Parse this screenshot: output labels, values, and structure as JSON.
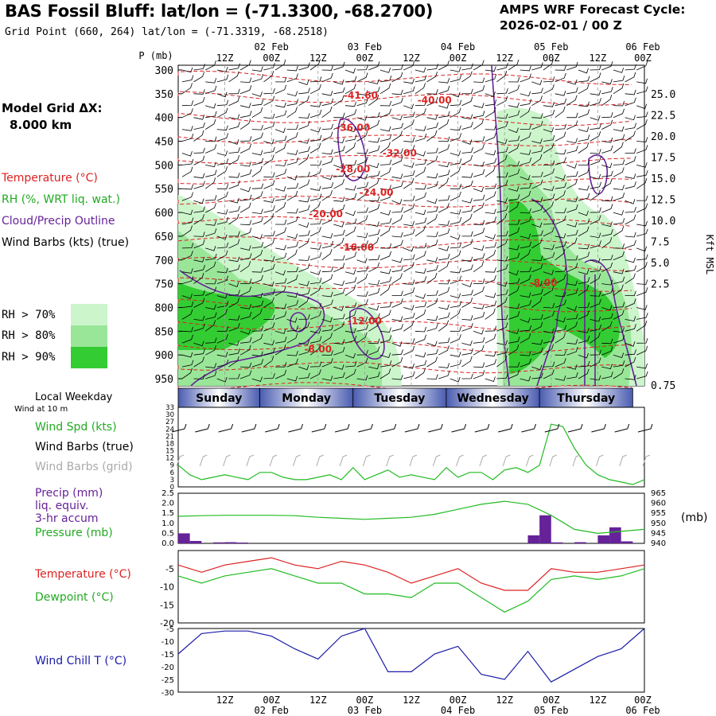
{
  "header": {
    "title": "BAS Fossil Bluff:  lat/lon = (-71.3300, -68.2700)",
    "grid_point": "Grid Point (660, 264) lat/lon = (-71.3319, -68.2518)",
    "cycle_label": "AMPS WRF Forecast Cycle:",
    "cycle_value": "2026-02-01 / 00  Z",
    "model_grid_label": "Model Grid ΔX:",
    "model_grid_value": "8.000 km"
  },
  "colors": {
    "temperature": "#dd2222",
    "rh": "#22bb22",
    "cloud_outline": "#662299",
    "wind_barb_true": "#000000",
    "wind_barb_grid": "#aaaaaa",
    "precip": "#662299",
    "pressure": "#22bb22",
    "dewpoint": "#22bb22",
    "wind_chill": "#1a1aa8",
    "rh70": "#ccf5cc",
    "rh80": "#99e699",
    "rh90": "#33cc33",
    "day_band_center": "#ffffff",
    "day_band_edge": "#4a5cb0"
  },
  "legend": {
    "temperature": "Temperature (°C)",
    "rh": "RH (%, WRT liq. wat.)",
    "cloud": "Cloud/Precip Outline",
    "wind_barbs": "Wind Barbs (kts) (true)",
    "rh70": "RH > 70%",
    "rh80": "RH > 80%",
    "rh90": "RH > 90%"
  },
  "panel_labels": {
    "local_weekday": "Local Weekday",
    "wind_at_10m": "Wind at 10 m",
    "wind_spd": "Wind Spd (kts)",
    "wind_barbs_true": "Wind Barbs (true)",
    "wind_barbs_grid": "Wind Barbs (grid)",
    "precip": "Precip (mm)",
    "precip_2": "liq. equiv.",
    "precip_3": "3-hr accum",
    "pressure": "Pressure (mb)",
    "pressure_unit": "(mb)",
    "temperature": "Temperature (°C)",
    "dewpoint": "Dewpoint (°C)",
    "wind_chill": "Wind Chill T (°C)",
    "kft_msl": "Kft MSL",
    "p_mb": "P (mb)"
  },
  "chart_data": {
    "type": "time-height meteogram",
    "time_axis": {
      "start_hour": 0,
      "end_hour": 120,
      "hour_labels": [
        "12Z",
        "00Z",
        "12Z",
        "00Z",
        "12Z",
        "00Z",
        "12Z",
        "00Z",
        "12Z",
        "00Z"
      ],
      "hour_label_times": [
        12,
        24,
        36,
        48,
        60,
        72,
        84,
        96,
        108,
        120
      ],
      "date_labels": [
        "02 Feb",
        "03 Feb",
        "04 Feb",
        "05 Feb",
        "06 Feb"
      ],
      "date_label_times": [
        24,
        48,
        72,
        96,
        120
      ]
    },
    "weekdays": [
      "Sunday",
      "Monday",
      "Tuesday",
      "Wednesday",
      "Thursday"
    ],
    "cross_section": {
      "pressure_levels": [
        300,
        350,
        400,
        450,
        500,
        550,
        600,
        650,
        700,
        750,
        800,
        850,
        900,
        950
      ],
      "height_ticks_kft": [
        "25.0",
        "22.5",
        "20.0",
        "17.5",
        "15.0",
        "12.5",
        "10.0",
        "7.5",
        "5.0",
        "2.5",
        "0.75"
      ],
      "temperature_contour_labels": [
        {
          "value": "-41.60",
          "t": 47,
          "p": 360
        },
        {
          "value": "-40.00",
          "t": 66,
          "p": 370
        },
        {
          "value": "-36.00",
          "t": 45,
          "p": 428
        },
        {
          "value": "-32.00",
          "t": 57,
          "p": 482
        },
        {
          "value": "-28.00",
          "t": 45,
          "p": 515
        },
        {
          "value": "-24.00",
          "t": 51,
          "p": 565
        },
        {
          "value": "-20.00",
          "t": 38,
          "p": 610
        },
        {
          "value": "-16.00",
          "t": 46,
          "p": 680
        },
        {
          "value": "-12.00",
          "t": 48,
          "p": 835
        },
        {
          "value": "-8.00",
          "t": 36,
          "p": 895
        },
        {
          "value": "-8.00",
          "t": 94,
          "p": 755
        }
      ]
    },
    "surface_wind": {
      "ylim": [
        0,
        33
      ],
      "yticks": [
        0,
        3,
        6,
        9,
        12,
        15,
        18,
        21,
        24,
        27,
        30,
        33
      ],
      "x": [
        0,
        3,
        6,
        9,
        12,
        15,
        18,
        21,
        24,
        27,
        30,
        33,
        36,
        39,
        42,
        45,
        48,
        51,
        54,
        57,
        60,
        63,
        66,
        69,
        72,
        75,
        78,
        81,
        84,
        87,
        90,
        93,
        96,
        99,
        102,
        105,
        108,
        111,
        114,
        117,
        120
      ],
      "speed": [
        9,
        5,
        3,
        4,
        5,
        4,
        3,
        6,
        6,
        4,
        3,
        3,
        4,
        5,
        3,
        8,
        3,
        5,
        7,
        4,
        5,
        4,
        3,
        8,
        4,
        6,
        6,
        3,
        7,
        8,
        6,
        9,
        26,
        25,
        16,
        9,
        5,
        3,
        2,
        1,
        3
      ]
    },
    "precip_pressure": {
      "precip_ylim": [
        0,
        2.5
      ],
      "precip_yticks": [
        "0.0",
        "0.5",
        "1.0",
        "1.5",
        "2.0",
        "2.5"
      ],
      "pressure_ylim": [
        940,
        965
      ],
      "pressure_yticks": [
        "940",
        "945",
        "950",
        "955",
        "960",
        "965"
      ],
      "precip_bars": [
        {
          "t": 1.5,
          "v": 0.5
        },
        {
          "t": 4.5,
          "v": 0.12
        },
        {
          "t": 10.5,
          "v": 0.05
        },
        {
          "t": 13.5,
          "v": 0.06
        },
        {
          "t": 16.5,
          "v": 0.04
        },
        {
          "t": 91.5,
          "v": 0.4
        },
        {
          "t": 94.5,
          "v": 1.4
        },
        {
          "t": 97.5,
          "v": 0.05
        },
        {
          "t": 103.5,
          "v": 0.06
        },
        {
          "t": 109.5,
          "v": 0.4
        },
        {
          "t": 112.5,
          "v": 0.8
        },
        {
          "t": 115.5,
          "v": 0.1
        }
      ],
      "pressure_x": [
        0,
        6,
        12,
        18,
        24,
        30,
        36,
        42,
        48,
        54,
        60,
        66,
        72,
        78,
        84,
        90,
        96,
        102,
        108,
        114,
        120
      ],
      "pressure_values": [
        953.5,
        953.8,
        954,
        954,
        954,
        953.8,
        953,
        952.5,
        952,
        952.5,
        953,
        954.5,
        957,
        959.5,
        961,
        959.5,
        954,
        947,
        945,
        946,
        947
      ]
    },
    "temp_dew": {
      "ylim": [
        -20,
        0
      ],
      "yticks": [
        -5,
        -10,
        -15,
        -20
      ],
      "x": [
        0,
        6,
        12,
        18,
        24,
        30,
        36,
        42,
        48,
        54,
        60,
        66,
        72,
        78,
        84,
        90,
        96,
        102,
        108,
        114,
        120
      ],
      "temperature": [
        -4,
        -6,
        -4,
        -3,
        -2,
        -4,
        -5,
        -3,
        -4,
        -6,
        -9,
        -7,
        -5,
        -9,
        -11,
        -11,
        -5,
        -6,
        -6,
        -5,
        -4
      ],
      "dewpoint": [
        -7,
        -9,
        -7,
        -6,
        -5,
        -7,
        -9,
        -9,
        -12,
        -12,
        -13,
        -9,
        -9,
        -13,
        -17,
        -14,
        -8,
        -7,
        -8,
        -7,
        -5
      ]
    },
    "wind_chill": {
      "ylim": [
        -30,
        -5
      ],
      "yticks": [
        -5,
        -10,
        -15,
        -20,
        -25,
        -30
      ],
      "x": [
        0,
        6,
        12,
        18,
        24,
        30,
        36,
        42,
        48,
        54,
        60,
        66,
        72,
        78,
        84,
        90,
        96,
        102,
        108,
        114,
        120
      ],
      "values": [
        -15,
        -7,
        -6,
        -6,
        -8,
        -13,
        -17,
        -8,
        -5,
        -22,
        -22,
        -15,
        -12,
        -23,
        -25,
        -14,
        -26,
        -21,
        -16,
        -13,
        -5
      ]
    }
  }
}
